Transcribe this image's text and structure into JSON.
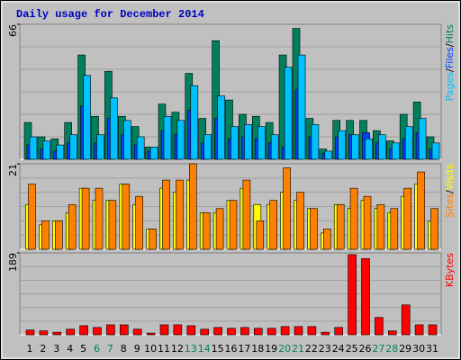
{
  "title": "Daily usage for December 2014",
  "legend_separator": "/",
  "chart_data": [
    {
      "type": "bar",
      "ylim": [
        0,
        66
      ],
      "yticks": [
        66
      ],
      "series": [
        {
          "name": "Hits",
          "color": "#00805c",
          "values": [
            18,
            11,
            10,
            18,
            51,
            21,
            43,
            21,
            16,
            6,
            27,
            23,
            42,
            20,
            58,
            29,
            22,
            21,
            18,
            51,
            64,
            20,
            5,
            19,
            19,
            19,
            14,
            9,
            22,
            28,
            11
          ]
        },
        {
          "name": "Files",
          "color": "#0040ff",
          "values": [
            7,
            5,
            4,
            8,
            26,
            8,
            20,
            12,
            7,
            4,
            14,
            12,
            24,
            8,
            20,
            10,
            11,
            10,
            8,
            6,
            34,
            11,
            3,
            11,
            12,
            13,
            8,
            5,
            10,
            13,
            5
          ]
        },
        {
          "name": "Pages",
          "color": "#00c0ff",
          "values": [
            11,
            9,
            7,
            12,
            41,
            12,
            30,
            19,
            11,
            6,
            21,
            19,
            36,
            12,
            31,
            16,
            17,
            16,
            12,
            45,
            51,
            17,
            4,
            14,
            12,
            10,
            12,
            8,
            16,
            20,
            8
          ]
        }
      ]
    },
    {
      "type": "bar",
      "ylim": [
        0,
        21
      ],
      "yticks": [
        21
      ],
      "series": [
        {
          "name": "Visits",
          "color": "#ffff00",
          "values": [
            11,
            6,
            7,
            9,
            15,
            12,
            12,
            16,
            11,
            5,
            15,
            14,
            17,
            9,
            9,
            12,
            15,
            11,
            11,
            14,
            12,
            10,
            4,
            11,
            10,
            12,
            10,
            9,
            13,
            16,
            7
          ]
        },
        {
          "name": "Sites",
          "color": "#ff8000",
          "values": [
            16,
            7,
            7,
            11,
            15,
            15,
            12,
            16,
            13,
            5,
            17,
            17,
            21,
            9,
            10,
            12,
            17,
            7,
            12,
            20,
            14,
            10,
            5,
            11,
            15,
            13,
            11,
            10,
            15,
            19,
            10
          ]
        }
      ]
    },
    {
      "type": "bar",
      "ylim": [
        0,
        189
      ],
      "yticks": [
        189
      ],
      "series": [
        {
          "name": "KBytes",
          "color": "#ff0000",
          "values": [
            11,
            9,
            6,
            13,
            21,
            17,
            23,
            23,
            13,
            4,
            23,
            23,
            21,
            13,
            17,
            15,
            17,
            15,
            15,
            19,
            19,
            19,
            6,
            17,
            185,
            176,
            40,
            9,
            69,
            23,
            23
          ]
        }
      ],
      "categories": [
        "1",
        "2",
        "3",
        "4",
        "5",
        "6",
        "7",
        "8",
        "9",
        "10",
        "11",
        "12",
        "13",
        "14",
        "15",
        "16",
        "17",
        "18",
        "19",
        "20",
        "21",
        "22",
        "23",
        "24",
        "25",
        "26",
        "27",
        "28",
        "29",
        "30",
        "31"
      ],
      "category_colors": [
        "#000000",
        "#000000",
        "#000000",
        "#000000",
        "#000000",
        "#00805c",
        "#00805c",
        "#000000",
        "#000000",
        "#000000",
        "#000000",
        "#000000",
        "#00805c",
        "#00805c",
        "#000000",
        "#000000",
        "#000000",
        "#000000",
        "#000000",
        "#00805c",
        "#00805c",
        "#000000",
        "#000000",
        "#000000",
        "#000000",
        "#000000",
        "#00805c",
        "#00805c",
        "#000000",
        "#000000",
        "#000000"
      ]
    }
  ]
}
